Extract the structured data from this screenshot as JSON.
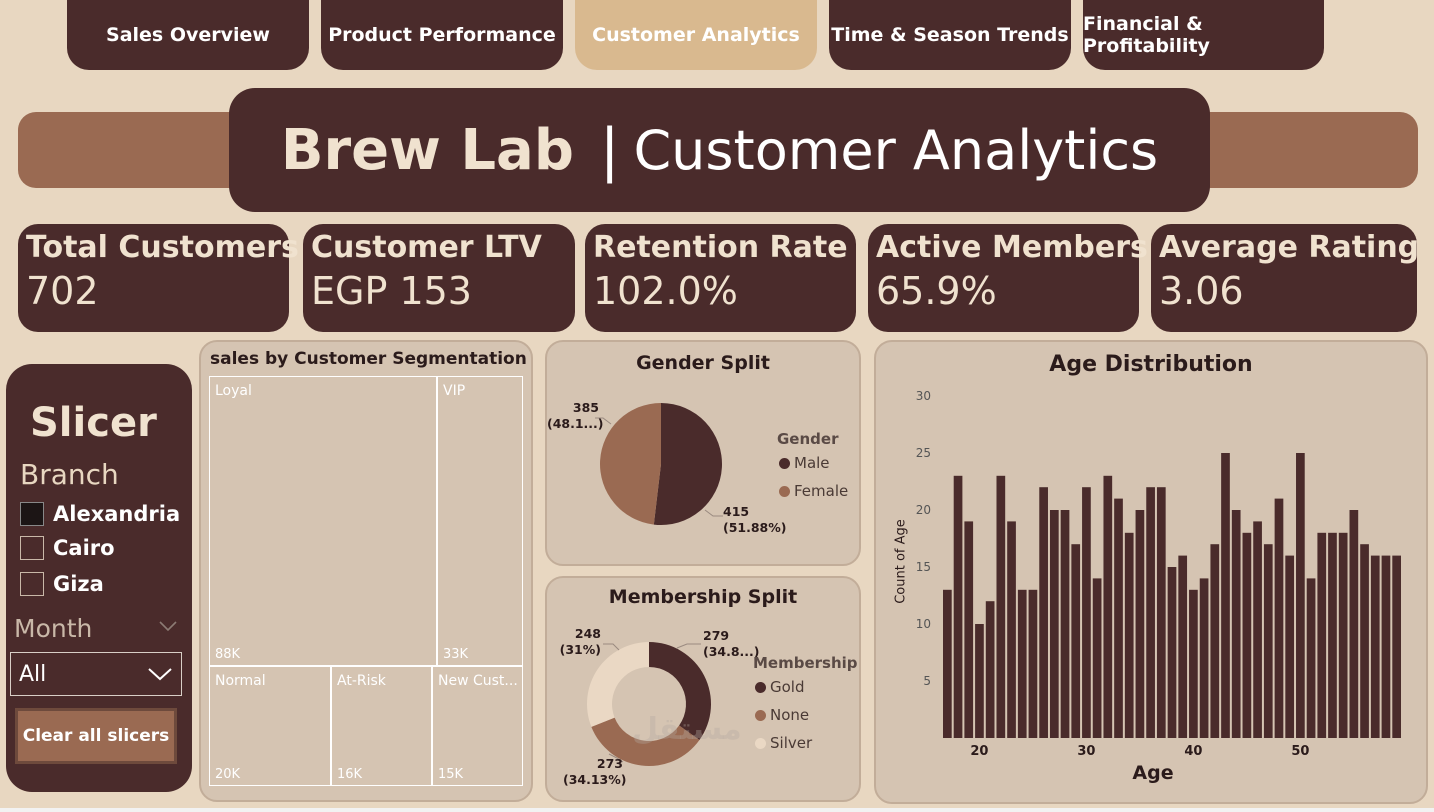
{
  "tabs": [
    {
      "label": "Sales Overview",
      "active": false
    },
    {
      "label": "Product Performance",
      "active": false
    },
    {
      "label": "Customer Analytics",
      "active": true
    },
    {
      "label": "Time & Season Trends",
      "active": false
    },
    {
      "label": "Financial & Profitability",
      "active": false
    }
  ],
  "header": {
    "brand": "Brew Lab",
    "separator": "|",
    "subtitle": "Customer Analytics"
  },
  "kpis": [
    {
      "label": "Total Customers",
      "value": "702"
    },
    {
      "label": "Customer LTV",
      "value": "EGP 153"
    },
    {
      "label": "Retention Rate",
      "value": "102.0%"
    },
    {
      "label": "Active Members",
      "value": "65.9%"
    },
    {
      "label": "Average Rating",
      "value": "3.06"
    }
  ],
  "slicer": {
    "title": "Slicer",
    "branch_label": "Branch",
    "branches": [
      {
        "label": "Alexandria",
        "checked": true
      },
      {
        "label": "Cairo",
        "checked": false
      },
      {
        "label": "Giza",
        "checked": false
      }
    ],
    "month_label": "Month",
    "month_value": "All",
    "clear_label": "Clear all slicers"
  },
  "colors": {
    "dark": "#4a2b2b",
    "brown": "#9a6a52",
    "tan": "#d9b98f",
    "beige": "#e8d7c1",
    "card": "#d5c4b2"
  },
  "chart_data": [
    {
      "type": "treemap",
      "title": "sales by Customer Segmentation",
      "items": [
        {
          "name": "Loyal",
          "value": 88000,
          "label": "88K",
          "color": "#4a2b2b"
        },
        {
          "name": "VIP",
          "value": 33000,
          "label": "33K",
          "color": "#7a5444"
        },
        {
          "name": "Normal",
          "value": 20000,
          "label": "20K",
          "color": "#8f7060"
        },
        {
          "name": "At-Risk",
          "value": 16000,
          "label": "16K",
          "color": "#b88e78"
        },
        {
          "name": "New Cust...",
          "value": 15000,
          "label": "15K",
          "color": "#ead8c4"
        }
      ]
    },
    {
      "type": "pie",
      "title": "Gender Split",
      "legend_title": "Gender",
      "slices": [
        {
          "name": "Male",
          "value": 415,
          "label": "415",
          "pct": "(51.88%)",
          "color": "#4a2b2b"
        },
        {
          "name": "Female",
          "value": 385,
          "label": "385",
          "pct": "(48.1...)",
          "color": "#9a6a52"
        }
      ]
    },
    {
      "type": "donut",
      "title": "Membership Split",
      "legend_title": "Membership",
      "slices": [
        {
          "name": "Gold",
          "value": 279,
          "label": "279",
          "pct": "(34.8...)",
          "color": "#4a2b2b"
        },
        {
          "name": "None",
          "value": 273,
          "label": "273",
          "pct": "(34.13%)",
          "color": "#9a6a52"
        },
        {
          "name": "Silver",
          "value": 248,
          "label": "248",
          "pct": "(31%)",
          "color": "#ead8c4"
        }
      ]
    },
    {
      "type": "bar",
      "title": "Age Distribution",
      "xlabel": "Age",
      "ylabel": "Count of Age",
      "ylim": [
        0,
        30
      ],
      "yticks": [
        5,
        10,
        15,
        20,
        25,
        30
      ],
      "xticks": [
        20,
        30,
        40,
        50
      ],
      "x": [
        17,
        18,
        19,
        20,
        21,
        22,
        23,
        24,
        25,
        26,
        27,
        28,
        29,
        30,
        31,
        32,
        33,
        34,
        35,
        36,
        37,
        38,
        39,
        40,
        41,
        42,
        43,
        44,
        45,
        46,
        47,
        48,
        49,
        50,
        51,
        52,
        53,
        54,
        55,
        56,
        57,
        58,
        59
      ],
      "values": [
        13,
        23,
        19,
        10,
        12,
        23,
        19,
        13,
        13,
        22,
        20,
        20,
        17,
        22,
        14,
        23,
        21,
        18,
        20,
        22,
        22,
        15,
        16,
        13,
        14,
        17,
        25,
        20,
        18,
        19,
        17,
        21,
        16,
        25,
        14,
        18,
        18,
        18,
        20,
        17,
        16,
        16,
        16
      ]
    }
  ]
}
